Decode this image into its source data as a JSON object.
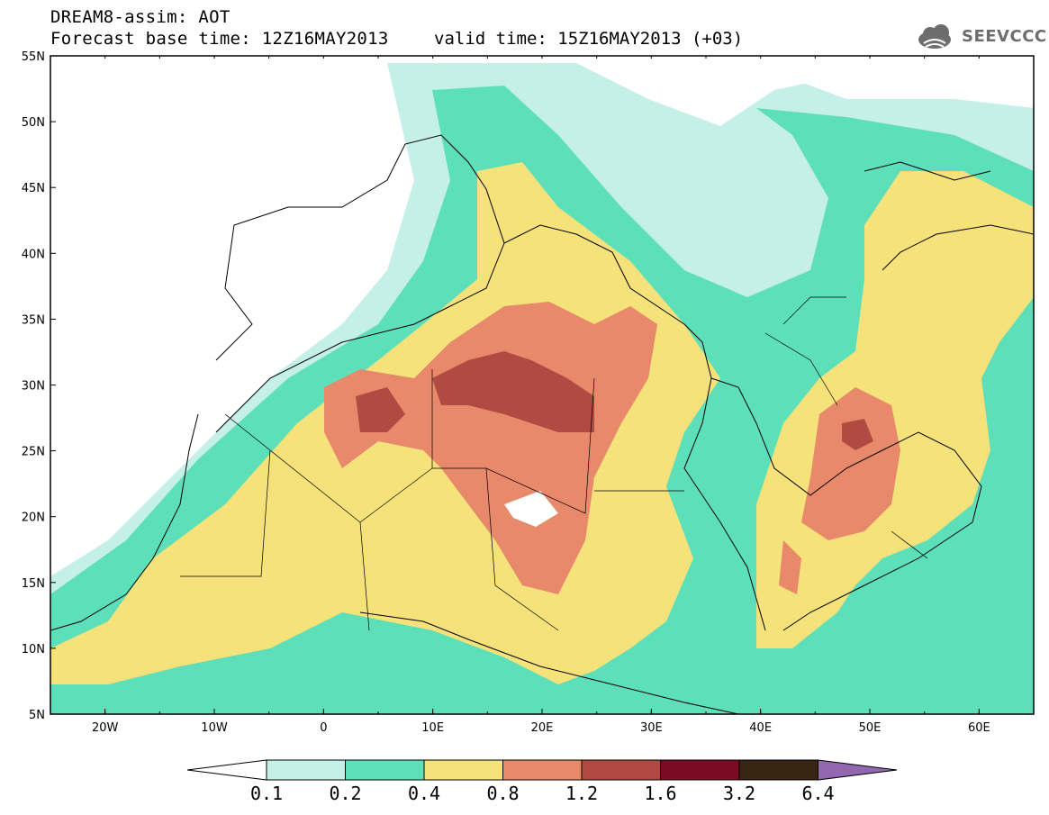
{
  "header": {
    "title": "DREAM8-assim: AOT",
    "base_time": "Forecast base time: 12Z16MAY2013",
    "valid_time": "valid time: 15Z16MAY2013 (+03)"
  },
  "logo": {
    "text": "SEEVCCC",
    "icon": "cloud-icon"
  },
  "map": {
    "lat_labels": [
      "55N",
      "50N",
      "45N",
      "40N",
      "35N",
      "30N",
      "25N",
      "20N",
      "15N",
      "10N",
      "5N"
    ],
    "lon_labels": [
      "20W",
      "10W",
      "0",
      "10E",
      "20E",
      "30E",
      "40E",
      "50E",
      "60E"
    ],
    "lat_range": [
      5,
      55
    ],
    "lon_range": [
      -25,
      65
    ],
    "field": "Aerosol optical thickness (AOT)"
  },
  "colorbar": {
    "labels": [
      "0.1",
      "0.2",
      "0.4",
      "0.8",
      "1.2",
      "1.6",
      "3.2",
      "6.4"
    ],
    "colors": [
      "#ffffff",
      "#c4f0e8",
      "#5ddfb9",
      "#f5e27a",
      "#e7896a",
      "#b04a43",
      "#7a0b22",
      "#3a2412",
      "#9468b0"
    ]
  }
}
